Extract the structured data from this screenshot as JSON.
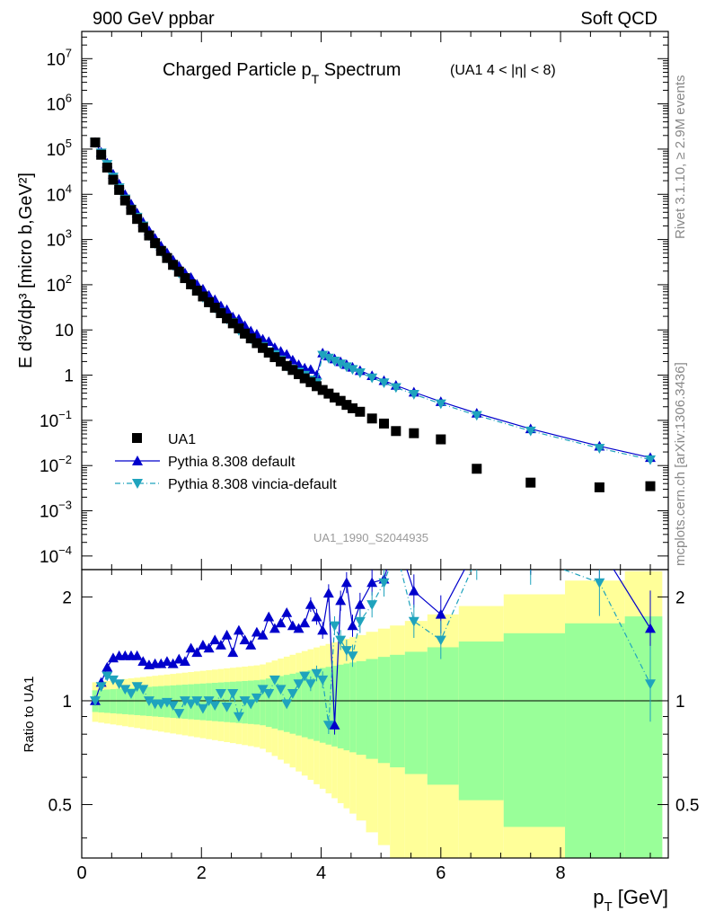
{
  "header": {
    "left": "900 GeV ppbar",
    "right": "Soft QCD"
  },
  "side_labels": {
    "rivet": "Rivet 3.1.10, ≥ 2.9M events",
    "mcplots": "mcplots.cern.ch [arXiv:1306.3436]"
  },
  "chart_data": {
    "type": "scatter",
    "title": "Charged Particle p_T Spectrum",
    "title_parts": {
      "main": "Charged Particle p",
      "sub": "T",
      "tail": " Spectrum"
    },
    "subtitle": "(UA1   4 < |η| < 8)",
    "watermark": "UA1_1990_S2044935",
    "xlabel": {
      "main": "p",
      "sub": "T",
      "tail": " [GeV]"
    },
    "ylabel": "E d³σ/dp³ [micro b,GeV²]",
    "ratio_ylabel": "Ratio to UA1",
    "xlim": [
      0,
      9.8
    ],
    "ylim": [
      5e-05,
      40000000.0
    ],
    "ylog": true,
    "ratio_ylim": [
      0.35,
      2.4
    ],
    "ratio_ylog": true,
    "x_ticks": [
      "0",
      "2",
      "4",
      "6",
      "8"
    ],
    "y_ticks": [
      {
        "m": "10",
        "e": "7"
      },
      {
        "m": "10",
        "e": "6"
      },
      {
        "m": "10",
        "e": "5"
      },
      {
        "m": "10",
        "e": "4"
      },
      {
        "m": "10",
        "e": "3"
      },
      {
        "m": "10",
        "e": "2"
      },
      {
        "m": "10",
        "e": ""
      },
      {
        "m": "1",
        "e": ""
      },
      {
        "m": "10",
        "e": "−1"
      },
      {
        "m": "10",
        "e": "−2"
      },
      {
        "m": "10",
        "e": "−3"
      },
      {
        "m": "10",
        "e": "−4"
      }
    ],
    "ratio_ticks": [
      "2",
      "1",
      "0.5"
    ],
    "legend_position": "bottom-left",
    "series": [
      {
        "name": "UA1",
        "color": "#000000",
        "marker": "square",
        "x": [
          0.225,
          0.325,
          0.425,
          0.525,
          0.625,
          0.725,
          0.825,
          0.925,
          1.025,
          1.125,
          1.225,
          1.325,
          1.425,
          1.525,
          1.625,
          1.725,
          1.825,
          1.925,
          2.025,
          2.125,
          2.225,
          2.325,
          2.425,
          2.525,
          2.625,
          2.725,
          2.825,
          2.925,
          3.025,
          3.125,
          3.225,
          3.325,
          3.425,
          3.525,
          3.625,
          3.725,
          3.825,
          3.925,
          4.025,
          4.125,
          4.225,
          4.325,
          4.425,
          4.525,
          4.65,
          4.85,
          5.05,
          5.25,
          5.55,
          6.0,
          6.6,
          7.5,
          8.65,
          9.5
        ],
        "y": [
          140000,
          75000,
          39000,
          21000,
          12500,
          7300,
          4500,
          2850,
          1850,
          1230,
          830,
          560,
          390,
          275,
          195,
          140,
          102,
          74,
          55,
          41,
          31,
          23.5,
          18,
          14,
          10.8,
          8.3,
          6.5,
          5.1,
          4.0,
          3.15,
          2.5,
          2.0,
          1.6,
          1.3,
          1.05,
          0.85,
          0.7,
          0.57,
          0.47,
          0.39,
          0.32,
          0.27,
          0.22,
          0.185,
          0.155,
          0.11,
          0.085,
          0.058,
          0.052,
          0.038,
          0.0085,
          0.0042,
          0.0033,
          0.0035
        ]
      },
      {
        "name": "Pythia 8.308 default",
        "color": "#0000cc",
        "marker": "triangle-up",
        "line": "solid",
        "x": [
          0.225,
          0.325,
          0.425,
          0.525,
          0.625,
          0.725,
          0.825,
          0.925,
          1.025,
          1.125,
          1.225,
          1.325,
          1.425,
          1.525,
          1.625,
          1.725,
          1.825,
          1.925,
          2.025,
          2.125,
          2.225,
          2.325,
          2.425,
          2.525,
          2.625,
          2.725,
          2.825,
          2.925,
          3.025,
          3.125,
          3.225,
          3.325,
          3.425,
          3.525,
          3.625,
          3.725,
          3.825,
          3.925,
          4.025,
          4.125,
          4.225,
          4.325,
          4.425,
          4.525,
          4.65,
          4.85,
          5.05,
          5.25,
          5.55,
          6.0,
          6.6,
          7.5,
          8.65,
          9.5
        ],
        "ratio": [
          1.0,
          1.13,
          1.25,
          1.33,
          1.35,
          1.35,
          1.35,
          1.35,
          1.3,
          1.27,
          1.28,
          1.28,
          1.3,
          1.28,
          1.32,
          1.3,
          1.42,
          1.38,
          1.45,
          1.42,
          1.5,
          1.45,
          1.55,
          1.38,
          1.6,
          1.5,
          1.45,
          1.58,
          1.55,
          1.75,
          1.62,
          1.68,
          1.8,
          1.65,
          1.62,
          1.68,
          1.9,
          1.75,
          1.6,
          2.05,
          0.85,
          1.95,
          2.2,
          1.65,
          1.9,
          2.2,
          2.25,
          3.0,
          2.08,
          1.78,
          2.8,
          2.8,
          2.8,
          1.62
        ]
      },
      {
        "name": "Pythia 8.308 vincia-default",
        "color": "#1fa3bd",
        "marker": "triangle-down",
        "line": "dashdot",
        "x": [
          0.225,
          0.325,
          0.425,
          0.525,
          0.625,
          0.725,
          0.825,
          0.925,
          1.025,
          1.125,
          1.225,
          1.325,
          1.425,
          1.525,
          1.625,
          1.725,
          1.825,
          1.925,
          2.025,
          2.125,
          2.225,
          2.325,
          2.425,
          2.525,
          2.625,
          2.725,
          2.825,
          2.925,
          3.025,
          3.125,
          3.225,
          3.325,
          3.425,
          3.525,
          3.625,
          3.725,
          3.825,
          3.925,
          4.025,
          4.125,
          4.225,
          4.325,
          4.425,
          4.525,
          4.65,
          4.85,
          5.05,
          5.25,
          5.55,
          6.0,
          6.6,
          7.5,
          8.65,
          9.5
        ],
        "ratio": [
          1.0,
          1.1,
          1.18,
          1.15,
          1.12,
          1.08,
          1.05,
          1.1,
          1.08,
          1.0,
          0.98,
          0.98,
          0.99,
          0.97,
          0.92,
          1.0,
          0.98,
          1.0,
          0.95,
          1.0,
          0.97,
          1.05,
          0.96,
          1.05,
          0.9,
          1.0,
          0.98,
          1.02,
          1.08,
          1.05,
          1.15,
          1.08,
          0.98,
          1.05,
          1.12,
          1.18,
          1.12,
          1.2,
          1.15,
          0.85,
          1.65,
          1.5,
          1.4,
          1.35,
          1.7,
          1.9,
          2.2,
          2.75,
          1.7,
          1.5,
          2.6,
          2.6,
          2.2,
          1.12
        ]
      }
    ]
  }
}
